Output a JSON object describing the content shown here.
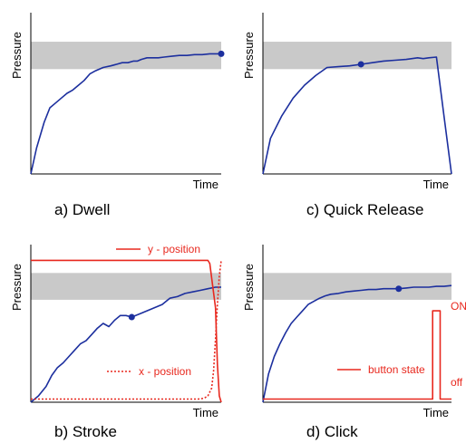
{
  "chart_data": [
    {
      "type": "line",
      "caption": "a) Dwell",
      "xlabel": "Time",
      "ylabel": "Pressure",
      "xlim": [
        0,
        100
      ],
      "ylim": [
        0,
        100
      ],
      "band": [
        65,
        82
      ],
      "colors": {
        "pressure": "#1c2f9e",
        "band": "#c9c9c9"
      },
      "series": [
        {
          "key": "pressure",
          "marker_last": true,
          "x": [
            0,
            3,
            7,
            10,
            13,
            16,
            19,
            22,
            25,
            28,
            31,
            34,
            38,
            42,
            45,
            48,
            51,
            54,
            56,
            58,
            61,
            64,
            67,
            70,
            74,
            78,
            82,
            86,
            90,
            94,
            97,
            100
          ],
          "y": [
            0,
            16,
            32,
            41,
            44,
            47,
            50,
            52,
            55,
            58,
            62,
            64,
            66,
            67,
            68,
            69,
            69,
            70,
            70,
            71,
            72,
            72,
            72,
            72.5,
            73,
            73.5,
            73.5,
            74,
            74,
            74.5,
            74.5,
            74.5
          ]
        }
      ]
    },
    {
      "type": "line",
      "caption": "c) Quick Release",
      "xlabel": "Time",
      "ylabel": "Pressure",
      "xlim": [
        0,
        100
      ],
      "ylim": [
        0,
        100
      ],
      "band": [
        65,
        82
      ],
      "colors": {
        "pressure": "#1c2f9e",
        "band": "#c9c9c9"
      },
      "series": [
        {
          "key": "pressure",
          "marker_at": 10,
          "x": [
            0,
            4,
            10,
            16,
            22,
            28,
            34,
            40,
            46,
            52,
            58,
            64,
            70,
            76,
            82,
            85,
            88,
            92,
            96,
            100
          ],
          "y": [
            0,
            22,
            36,
            47,
            55,
            61,
            66,
            66.5,
            67,
            68,
            69,
            70,
            70.5,
            71,
            72,
            71.5,
            72,
            72.5,
            36,
            0
          ]
        }
      ]
    },
    {
      "type": "line",
      "caption": "b) Stroke",
      "xlabel": "Time",
      "ylabel": "Pressure",
      "xlim": [
        0,
        100
      ],
      "ylim": [
        0,
        100
      ],
      "band": [
        65,
        82
      ],
      "colors": {
        "pressure": "#1c2f9e",
        "y_position": "#e8281e",
        "x_position": "#e8281e",
        "band": "#c9c9c9"
      },
      "series": [
        {
          "key": "pressure",
          "marker_at": 12,
          "x": [
            0,
            4,
            8,
            11,
            14,
            17,
            20,
            23,
            26,
            29,
            32,
            35,
            38,
            41,
            44,
            47,
            50,
            53,
            57,
            61,
            65,
            69,
            73,
            77,
            81,
            85,
            89,
            93,
            97,
            100
          ],
          "y": [
            0,
            4,
            10,
            17,
            22,
            25,
            29,
            33,
            37,
            39,
            43,
            47,
            50,
            48,
            52,
            55,
            55,
            54,
            56,
            58,
            60,
            62,
            66,
            67,
            69,
            70,
            71,
            72,
            73,
            73
          ]
        },
        {
          "key": "y_position",
          "name": "y - position",
          "dash": false,
          "x": [
            0,
            93,
            94,
            97,
            98,
            99,
            100
          ],
          "y": [
            90,
            90,
            88,
            60,
            24,
            4,
            0
          ]
        },
        {
          "key": "x_position",
          "name": "x - position",
          "dash": true,
          "x": [
            0,
            88,
            91,
            93,
            95,
            96,
            97,
            98,
            99,
            100
          ],
          "y": [
            2,
            2,
            2.5,
            4,
            9,
            20,
            40,
            62,
            80,
            90
          ]
        }
      ]
    },
    {
      "type": "line",
      "caption": "d) Click",
      "xlabel": "Time",
      "ylabel": "Pressure",
      "xlim": [
        0,
        100
      ],
      "ylim": [
        0,
        100
      ],
      "band": [
        65,
        82
      ],
      "colors": {
        "pressure": "#1c2f9e",
        "button_state": "#e8281e",
        "band": "#c9c9c9"
      },
      "state_labels": {
        "on": "ON",
        "off": "off"
      },
      "series": [
        {
          "key": "pressure",
          "marker_at": 7,
          "x": [
            0,
            3,
            6,
            9,
            12,
            15,
            18,
            21,
            24,
            27,
            30,
            33,
            36,
            40,
            44,
            48,
            52,
            56,
            60,
            64,
            68,
            72,
            76,
            80,
            84,
            88,
            92,
            96,
            100
          ],
          "y": [
            0,
            18,
            29,
            37,
            44,
            50,
            54,
            58,
            62,
            64,
            66,
            67.5,
            68.5,
            69,
            70,
            70.5,
            71,
            71.5,
            71.5,
            72,
            72,
            72,
            72.5,
            73,
            73,
            73,
            73.5,
            73.5,
            74
          ]
        },
        {
          "key": "button_state",
          "name": "button state",
          "step": true,
          "x": [
            0,
            90,
            90,
            94,
            94,
            100
          ],
          "y": [
            2,
            2,
            58,
            58,
            2,
            2
          ]
        }
      ]
    }
  ]
}
